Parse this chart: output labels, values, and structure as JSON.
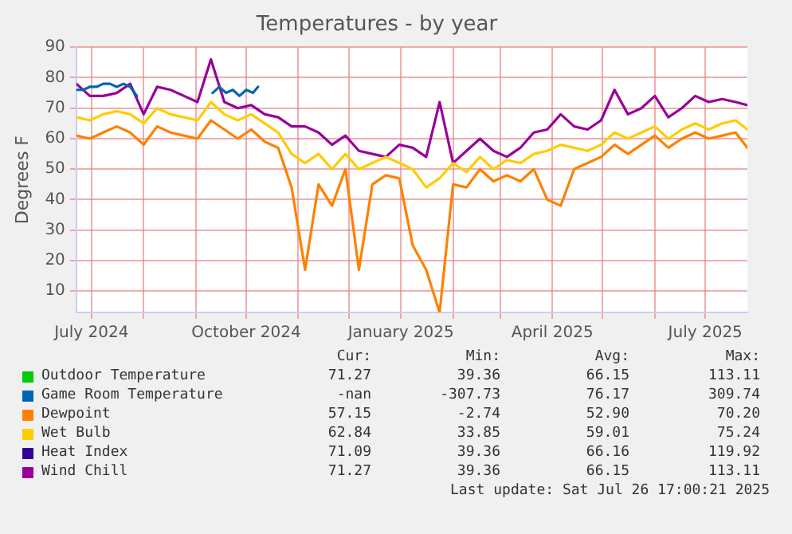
{
  "chart_data": {
    "type": "line",
    "title": "Temperatures - by year",
    "ylabel": "Degrees F",
    "x": [
      "2024-06-22",
      "2024-06-30",
      "2024-07-08",
      "2024-07-16",
      "2024-07-24",
      "2024-08-01",
      "2024-08-09",
      "2024-08-17",
      "2024-08-25",
      "2024-09-02",
      "2024-09-10",
      "2024-09-18",
      "2024-09-26",
      "2024-10-04",
      "2024-10-12",
      "2024-10-20",
      "2024-10-28",
      "2024-11-05",
      "2024-11-13",
      "2024-11-21",
      "2024-11-29",
      "2024-12-07",
      "2024-12-15",
      "2024-12-23",
      "2024-12-31",
      "2025-01-08",
      "2025-01-16",
      "2025-01-24",
      "2025-02-01",
      "2025-02-09",
      "2025-02-17",
      "2025-02-25",
      "2025-03-05",
      "2025-03-13",
      "2025-03-21",
      "2025-03-29",
      "2025-04-06",
      "2025-04-14",
      "2025-04-22",
      "2025-04-30",
      "2025-05-08",
      "2025-05-16",
      "2025-05-24",
      "2025-06-01",
      "2025-06-09",
      "2025-06-17",
      "2025-06-25",
      "2025-07-03",
      "2025-07-11",
      "2025-07-19",
      "2025-07-26"
    ],
    "series": [
      {
        "name": "Outdoor Temperature",
        "color": "#00cc00",
        "values": [
          null,
          null,
          null,
          null,
          null,
          null,
          null,
          null,
          null,
          null,
          null,
          null,
          null,
          null,
          null,
          null,
          null,
          null,
          null,
          null,
          null,
          null,
          null,
          null,
          null,
          null,
          null,
          null,
          null,
          null,
          null,
          null,
          null,
          null,
          null,
          null,
          null,
          null,
          null,
          null,
          null,
          null,
          null,
          null,
          null,
          null,
          null,
          null,
          null,
          null,
          null
        ]
      },
      {
        "name": "Game Room Temperature",
        "color": "#0066b3",
        "x": [
          "2024-06-22",
          "2024-06-26",
          "2024-06-30",
          "2024-07-04",
          "2024-07-08",
          "2024-07-12",
          "2024-07-16",
          "2024-07-20",
          "2024-07-24",
          "2024-07-28",
          "2024-08-15",
          "2024-09-11",
          "2024-09-15",
          "2024-09-19",
          "2024-09-23",
          "2024-09-27",
          "2024-10-01",
          "2024-10-05",
          "2024-10-08"
        ],
        "values": [
          76,
          76,
          77,
          77,
          78,
          78,
          77,
          78,
          77,
          74,
          null,
          75,
          77,
          75,
          76,
          74,
          76,
          75,
          77
        ]
      },
      {
        "name": "Dewpoint",
        "color": "#ff8000",
        "values": [
          61,
          60,
          62,
          64,
          62,
          58,
          64,
          62,
          61,
          60,
          66,
          63,
          60,
          63,
          59,
          57,
          44,
          17,
          45,
          38,
          50,
          17,
          45,
          48,
          47,
          25,
          17,
          3,
          45,
          44,
          50,
          46,
          48,
          46,
          50,
          40,
          38,
          50,
          52,
          54,
          58,
          55,
          58,
          61,
          57,
          60,
          62,
          60,
          61,
          62,
          57
        ]
      },
      {
        "name": "Wet Bulb",
        "color": "#ffcc00",
        "values": [
          67,
          66,
          68,
          69,
          68,
          65,
          70,
          68,
          67,
          66,
          72,
          68,
          66,
          68,
          65,
          62,
          55,
          52,
          55,
          50,
          55,
          50,
          52,
          54,
          52,
          50,
          44,
          47,
          52,
          49,
          54,
          50,
          53,
          52,
          55,
          56,
          58,
          57,
          56,
          58,
          62,
          60,
          62,
          64,
          60,
          63,
          65,
          63,
          65,
          66,
          63
        ]
      },
      {
        "name": "Heat Index",
        "color": "#330099",
        "values": [
          null,
          null,
          null,
          null,
          null,
          null,
          null,
          null,
          null,
          null,
          null,
          null,
          null,
          null,
          null,
          null,
          null,
          null,
          null,
          null,
          null,
          null,
          null,
          null,
          null,
          null,
          null,
          null,
          null,
          null,
          null,
          null,
          null,
          null,
          null,
          null,
          null,
          null,
          null,
          null,
          null,
          null,
          null,
          null,
          null,
          null,
          null,
          null,
          null,
          null,
          null
        ]
      },
      {
        "name": "Wind Chill",
        "color": "#990099",
        "values": [
          78,
          74,
          74,
          75,
          78,
          68,
          77,
          76,
          74,
          72,
          86,
          72,
          70,
          71,
          68,
          67,
          64,
          64,
          62,
          58,
          61,
          56,
          55,
          54,
          58,
          57,
          54,
          72,
          52,
          56,
          60,
          56,
          54,
          57,
          62,
          63,
          68,
          64,
          63,
          66,
          76,
          68,
          70,
          74,
          67,
          70,
          74,
          72,
          73,
          72,
          71
        ]
      }
    ],
    "xlim": [
      "2024-06-22",
      "2025-07-26"
    ],
    "xticks": [
      {
        "value": "2024-07-01",
        "label": "July 2024"
      },
      {
        "value": "2024-08-01",
        "label": null
      },
      {
        "value": "2024-09-01",
        "label": null
      },
      {
        "value": "2024-10-01",
        "label": "October 2024"
      },
      {
        "value": "2024-11-01",
        "label": null
      },
      {
        "value": "2024-12-01",
        "label": null
      },
      {
        "value": "2025-01-01",
        "label": "January 2025"
      },
      {
        "value": "2025-02-01",
        "label": null
      },
      {
        "value": "2025-03-01",
        "label": null
      },
      {
        "value": "2025-04-01",
        "label": "April 2025"
      },
      {
        "value": "2025-05-01",
        "label": null
      },
      {
        "value": "2025-06-01",
        "label": null
      },
      {
        "value": "2025-07-01",
        "label": "July 2025"
      }
    ],
    "ylim": [
      3,
      90
    ],
    "yticks": [
      10,
      20,
      30,
      40,
      50,
      60,
      70,
      80,
      90
    ],
    "grid": true,
    "legend": "bottom",
    "marker": "none",
    "annotations": [
      "Cur:",
      "Min:",
      "Avg:",
      "Max:",
      "71.27",
      "39.36",
      "66.15",
      "113.11",
      "-nan",
      "-307.73",
      "76.17",
      "309.74",
      "57.15",
      "-2.74",
      "52.90",
      "70.20",
      "62.84",
      "33.85",
      "59.01",
      "75.24",
      "71.09",
      "39.36",
      "66.16",
      "119.92",
      "71.27",
      "39.36",
      "66.15",
      "113.11",
      "Last update: Sat Jul 26 17:00:21 2025"
    ]
  }
}
